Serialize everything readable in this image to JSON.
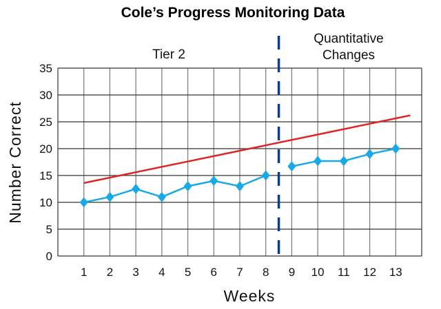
{
  "chart_data": {
    "type": "line",
    "title": "Cole’s Progress Monitoring Data",
    "xlabel": "Weeks",
    "ylabel": "Number Correct",
    "xlim": [
      0,
      14
    ],
    "ylim": [
      0,
      35
    ],
    "x_ticks": [
      "1",
      "2",
      "3",
      "4",
      "5",
      "6",
      "7",
      "8",
      "9",
      "10",
      "11",
      "12",
      "13"
    ],
    "y_ticks": [
      "0",
      "5",
      "10",
      "15",
      "20",
      "25",
      "30",
      "35"
    ],
    "grid": true,
    "series": [
      {
        "x": [
          1,
          2,
          3,
          4,
          5,
          6,
          7,
          8
        ],
        "y": [
          10,
          11,
          12.5,
          11,
          13,
          14,
          13,
          15
        ],
        "color": "#1aa8e6",
        "marker": "diamond"
      },
      {
        "x": [
          9,
          10,
          11,
          12,
          13
        ],
        "y": [
          16.7,
          17.7,
          17.7,
          19,
          20
        ],
        "color": "#1aa8e6",
        "marker": "diamond"
      }
    ],
    "aimline": {
      "x": [
        1,
        13.56
      ],
      "y": [
        13.6,
        26.2
      ],
      "color": "#e02424"
    },
    "phase_line": {
      "x": 8.5,
      "color": "#0a3d8a",
      "style": "dashed"
    },
    "annotations": {
      "phase1": "Tier 2",
      "phase2_line1": "Quantitative",
      "phase2_line2": "Changes"
    }
  }
}
